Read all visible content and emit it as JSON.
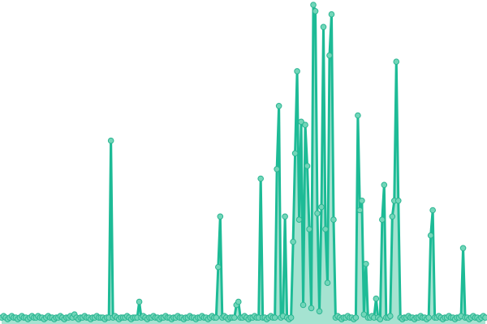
{
  "chart_data": {
    "type": "line",
    "title": "",
    "xlabel": "",
    "ylabel": "",
    "area_fill": true,
    "markers": true,
    "grid": false,
    "axes_visible": false,
    "ylim": [
      0,
      100
    ],
    "colors": {
      "line": "#1dbb96",
      "area": "#8fdcc6",
      "marker_fill": "#72d6b9",
      "marker_stroke": "#2bb592"
    },
    "values": [
      1,
      1.5,
      1,
      0.5,
      1,
      1.5,
      1,
      1,
      0.5,
      1,
      1.5,
      1,
      1,
      0.5,
      1,
      1.5,
      1,
      1,
      1.5,
      1,
      1,
      0.5,
      1,
      1.5,
      1,
      1,
      0.5,
      1,
      1,
      1.5,
      1,
      0.5,
      1,
      1,
      1.5,
      1,
      2,
      1,
      0.5,
      1,
      1,
      1.5,
      1,
      1,
      0.5,
      1,
      1,
      1.5,
      1,
      1,
      1,
      0.5,
      1,
      1,
      57,
      1,
      1.5,
      1,
      0.5,
      1,
      1,
      1,
      1.5,
      1,
      0.5,
      1,
      1,
      1,
      6,
      1,
      1.5,
      1,
      0.5,
      1,
      1,
      1.5,
      1,
      1,
      0.5,
      1,
      1,
      1.5,
      1,
      1,
      0.5,
      1,
      1,
      1.5,
      1,
      1,
      0.5,
      1,
      1,
      1.5,
      1,
      1,
      0.5,
      1,
      1,
      1.5,
      1,
      1,
      0.5,
      1,
      1.5,
      1,
      1,
      17,
      33,
      1,
      1.5,
      1,
      0.5,
      1,
      1,
      1,
      5,
      6,
      1,
      1,
      1.5,
      1,
      0.5,
      1,
      1,
      1.5,
      1,
      1,
      45,
      1,
      1,
      0.5,
      1,
      1.5,
      1,
      1,
      48,
      68,
      1,
      1.5,
      33,
      1,
      0.5,
      1,
      25,
      53,
      79,
      32,
      63,
      5,
      62,
      49,
      29,
      4,
      100,
      98,
      34,
      3,
      36,
      93,
      29,
      12,
      84,
      97,
      32,
      1,
      1.5,
      1,
      0.5,
      1,
      1,
      1.5,
      1,
      1,
      0.5,
      1,
      65,
      35,
      38,
      2,
      18,
      1,
      1,
      1.5,
      1,
      7,
      1,
      0.5,
      32,
      43,
      1,
      1,
      1.5,
      33,
      38,
      82,
      38,
      1,
      0.5,
      1,
      1,
      1.5,
      1,
      1,
      0.5,
      1,
      1,
      1.5,
      1,
      1,
      0.5,
      1,
      27,
      35,
      1,
      1,
      1.5,
      1,
      0.5,
      1,
      1,
      1.5,
      1,
      1,
      0.5,
      1,
      1,
      1.5,
      23,
      1,
      1,
      0.5,
      1,
      1.5,
      1,
      1,
      0.5,
      1,
      1.5,
      1
    ]
  }
}
